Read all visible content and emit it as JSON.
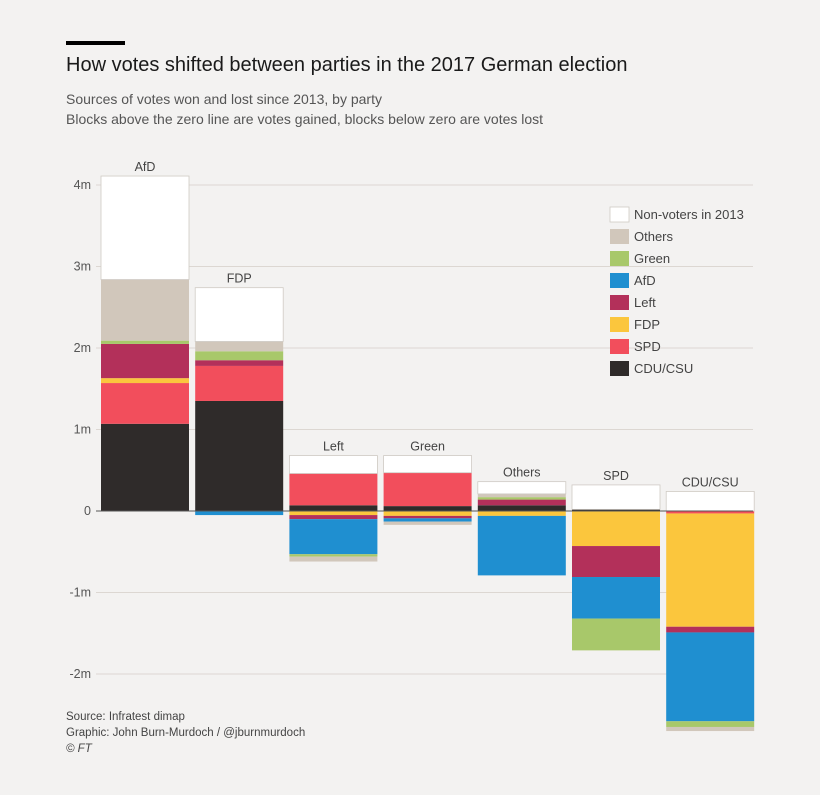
{
  "header": {
    "title": "How votes shifted between parties in the 2017 German election",
    "subtitle_1": "Sources of votes won and lost since 2013, by party",
    "subtitle_2": "Blocks above the zero line are votes gained, blocks below zero are votes lost"
  },
  "footer": {
    "source": "Source: Infratest dimap",
    "graphic": "Graphic: John Burn-Murdoch / @jburnmurdoch",
    "copyright": "© FT"
  },
  "colors": {
    "background": "#f3f2f1",
    "grid": "#dcd7d2",
    "Non-voters in 2013": "#ffffff",
    "Others": "#d1c7bb",
    "Green": "#a8c86a",
    "AfD": "#1f8fd0",
    "Left": "#b3305a",
    "FDP": "#fbc63d",
    "SPD": "#f24e5c",
    "CDU/CSU": "#2f2b2a"
  },
  "chart_data": {
    "type": "bar",
    "stacked": true,
    "categories": [
      "AfD",
      "FDP",
      "Left",
      "Green",
      "Others",
      "SPD",
      "CDU/CSU"
    ],
    "ylim": [
      -2.5,
      4.2
    ],
    "yticks": [
      {
        "value": 4,
        "label": "4m"
      },
      {
        "value": 3,
        "label": "3m"
      },
      {
        "value": 2,
        "label": "2m"
      },
      {
        "value": 1,
        "label": "1m"
      },
      {
        "value": 0,
        "label": "0"
      },
      {
        "value": -1,
        "label": "-1m"
      },
      {
        "value": -2,
        "label": "-2m"
      }
    ],
    "grid": true,
    "legend_position": "right",
    "legend": [
      "Non-voters in 2013",
      "Others",
      "Green",
      "AfD",
      "Left",
      "FDP",
      "SPD",
      "CDU/CSU"
    ],
    "series": [
      {
        "name": "CDU/CSU",
        "values": [
          1.07,
          1.35,
          0.07,
          0.06,
          0.07,
          0.02,
          0
        ]
      },
      {
        "name": "SPD",
        "values": [
          0.5,
          0.43,
          0.39,
          0.41,
          0,
          0,
          -0.03
        ]
      },
      {
        "name": "FDP",
        "values": [
          0.06,
          0,
          -0.05,
          -0.06,
          -0.06,
          -0.43,
          -1.39
        ]
      },
      {
        "name": "Left",
        "values": [
          0.42,
          0.07,
          -0.05,
          -0.03,
          0.07,
          -0.38,
          -0.07
        ]
      },
      {
        "name": "AfD",
        "values": [
          0,
          -0.05,
          -0.43,
          -0.04,
          -0.73,
          -0.51,
          -1.09
        ]
      },
      {
        "name": "Green",
        "values": [
          0.04,
          0.11,
          -0.03,
          0,
          0.03,
          -0.39,
          -0.07
        ]
      },
      {
        "name": "Others",
        "values": [
          0.75,
          0.12,
          -0.06,
          -0.04,
          0.04,
          0,
          -0.05
        ]
      },
      {
        "name": "Non-voters in 2013",
        "values": [
          1.27,
          0.66,
          0.22,
          0.21,
          0.15,
          0.3,
          0.24
        ]
      }
    ]
  }
}
